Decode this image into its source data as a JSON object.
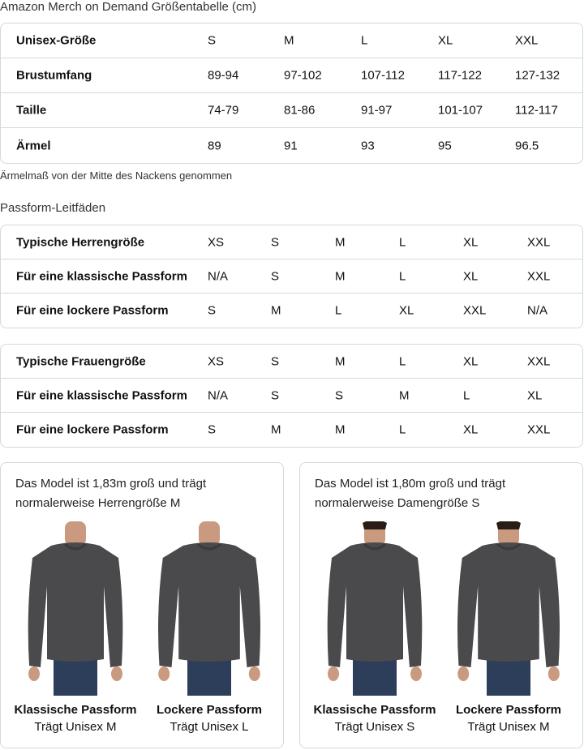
{
  "title": "Amazon Merch on Demand Größentabelle (cm)",
  "size_table": {
    "rows": [
      {
        "label": "Unisex-Größe",
        "values": [
          "S",
          "M",
          "L",
          "XL",
          "XXL"
        ]
      },
      {
        "label": "Brustumfang",
        "values": [
          "89-94",
          "97-102",
          "107-112",
          "117-122",
          "127-132"
        ]
      },
      {
        "label": "Taille",
        "values": [
          "74-79",
          "81-86",
          "91-97",
          "101-107",
          "112-117"
        ]
      },
      {
        "label": "Ärmel",
        "values": [
          "89",
          "91",
          "93",
          "95",
          "96.5"
        ]
      }
    ]
  },
  "sleeve_note": "Ärmelmaß von der Mitte des Nackens genommen",
  "fit_guide_title": "Passform-Leitfäden",
  "men_table": {
    "rows": [
      {
        "label": "Typische Herrengröße",
        "values": [
          "XS",
          "S",
          "M",
          "L",
          "XL",
          "XXL"
        ]
      },
      {
        "label": "Für eine klassische Passform",
        "values": [
          "N/A",
          "S",
          "M",
          "L",
          "XL",
          "XXL"
        ]
      },
      {
        "label": "Für eine lockere Passform",
        "values": [
          "S",
          "M",
          "L",
          "XL",
          "XXL",
          "N/A"
        ]
      }
    ]
  },
  "women_table": {
    "rows": [
      {
        "label": "Typische Frauengröße",
        "values": [
          "XS",
          "S",
          "M",
          "L",
          "XL",
          "XXL"
        ]
      },
      {
        "label": "Für eine klassische Passform",
        "values": [
          "N/A",
          "S",
          "S",
          "M",
          "L",
          "XL"
        ]
      },
      {
        "label": "Für eine lockere Passform",
        "values": [
          "S",
          "M",
          "M",
          "L",
          "XL",
          "XXL"
        ]
      }
    ]
  },
  "cards": [
    {
      "desc1": "Das Model ist 1,83m groß und trägt",
      "desc2": "normalerweise Herrengröße M",
      "fits": [
        {
          "name": "Klassische Passform",
          "wears": "Trägt Unisex M"
        },
        {
          "name": "Lockere Passform",
          "wears": "Trägt Unisex L"
        }
      ]
    },
    {
      "desc1": "Das Model ist 1,80m groß und trägt",
      "desc2": "normalerweise Damengröße S",
      "fits": [
        {
          "name": "Klassische Passform",
          "wears": "Trägt Unisex S"
        },
        {
          "name": "Lockere Passform",
          "wears": "Trägt Unisex M"
        }
      ]
    }
  ],
  "colors": {
    "border": "#d5d9d9",
    "sweatshirt": "#4a4a4c",
    "jeans": "#2c3e5a",
    "skin": "#c99a80"
  }
}
